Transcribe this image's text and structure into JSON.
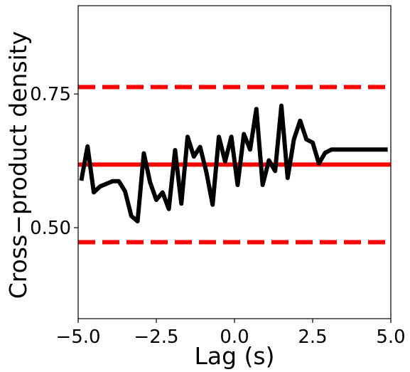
{
  "chart_data": {
    "type": "line",
    "xlabel": "Lag (s)",
    "ylabel": "Cross−product density",
    "xlim": [
      -5.0,
      5.0
    ],
    "ylim": [
      0.33,
      0.915
    ],
    "xticks": [
      -5.0,
      -2.5,
      0.0,
      2.5,
      5.0
    ],
    "xtick_labels": [
      "−5.0",
      "−2.5",
      "0.0",
      "2.5",
      "5.0"
    ],
    "yticks": [
      0.5,
      0.75
    ],
    "ytick_labels": [
      "0.50",
      "0.75"
    ],
    "grid": false,
    "series": [
      {
        "color": "#000000",
        "x": [
          -4.9,
          -4.7,
          -4.5,
          -4.3,
          -4.1,
          -3.9,
          -3.7,
          -3.5,
          -3.3,
          -3.1,
          -2.9,
          -2.7,
          -2.5,
          -2.3,
          -2.1,
          -1.9,
          -1.7,
          -1.5,
          -1.3,
          -1.1,
          -0.9,
          -0.7,
          -0.5,
          -0.3,
          -0.1,
          0.1,
          0.3,
          0.5,
          0.7,
          0.9,
          1.1,
          1.3,
          1.5,
          1.7,
          1.9,
          2.1,
          2.3,
          2.5,
          2.7,
          2.9,
          3.1,
          3.3,
          3.5,
          3.7,
          3.9,
          4.1,
          4.3,
          4.5,
          4.7,
          4.9
        ],
        "y": [
          0.588,
          0.652,
          0.566,
          0.577,
          0.582,
          0.587,
          0.587,
          0.568,
          0.522,
          0.512,
          0.639,
          0.585,
          0.552,
          0.566,
          0.535,
          0.645,
          0.545,
          0.67,
          0.633,
          0.651,
          0.604,
          0.543,
          0.67,
          0.624,
          0.67,
          0.58,
          0.675,
          0.646,
          0.722,
          0.58,
          0.626,
          0.606,
          0.728,
          0.593,
          0.665,
          0.7,
          0.665,
          0.659,
          0.62,
          0.64,
          0.646,
          0.646,
          0.646,
          0.646,
          0.646,
          0.646,
          0.646,
          0.646,
          0.646,
          0.646
        ]
      }
    ],
    "reference_lines": [
      {
        "y": 0.763,
        "style": "dashed",
        "color": "#ff0000"
      },
      {
        "y": 0.618,
        "style": "solid",
        "color": "#ff0000"
      },
      {
        "y": 0.473,
        "style": "dashed",
        "color": "#ff0000"
      }
    ]
  }
}
